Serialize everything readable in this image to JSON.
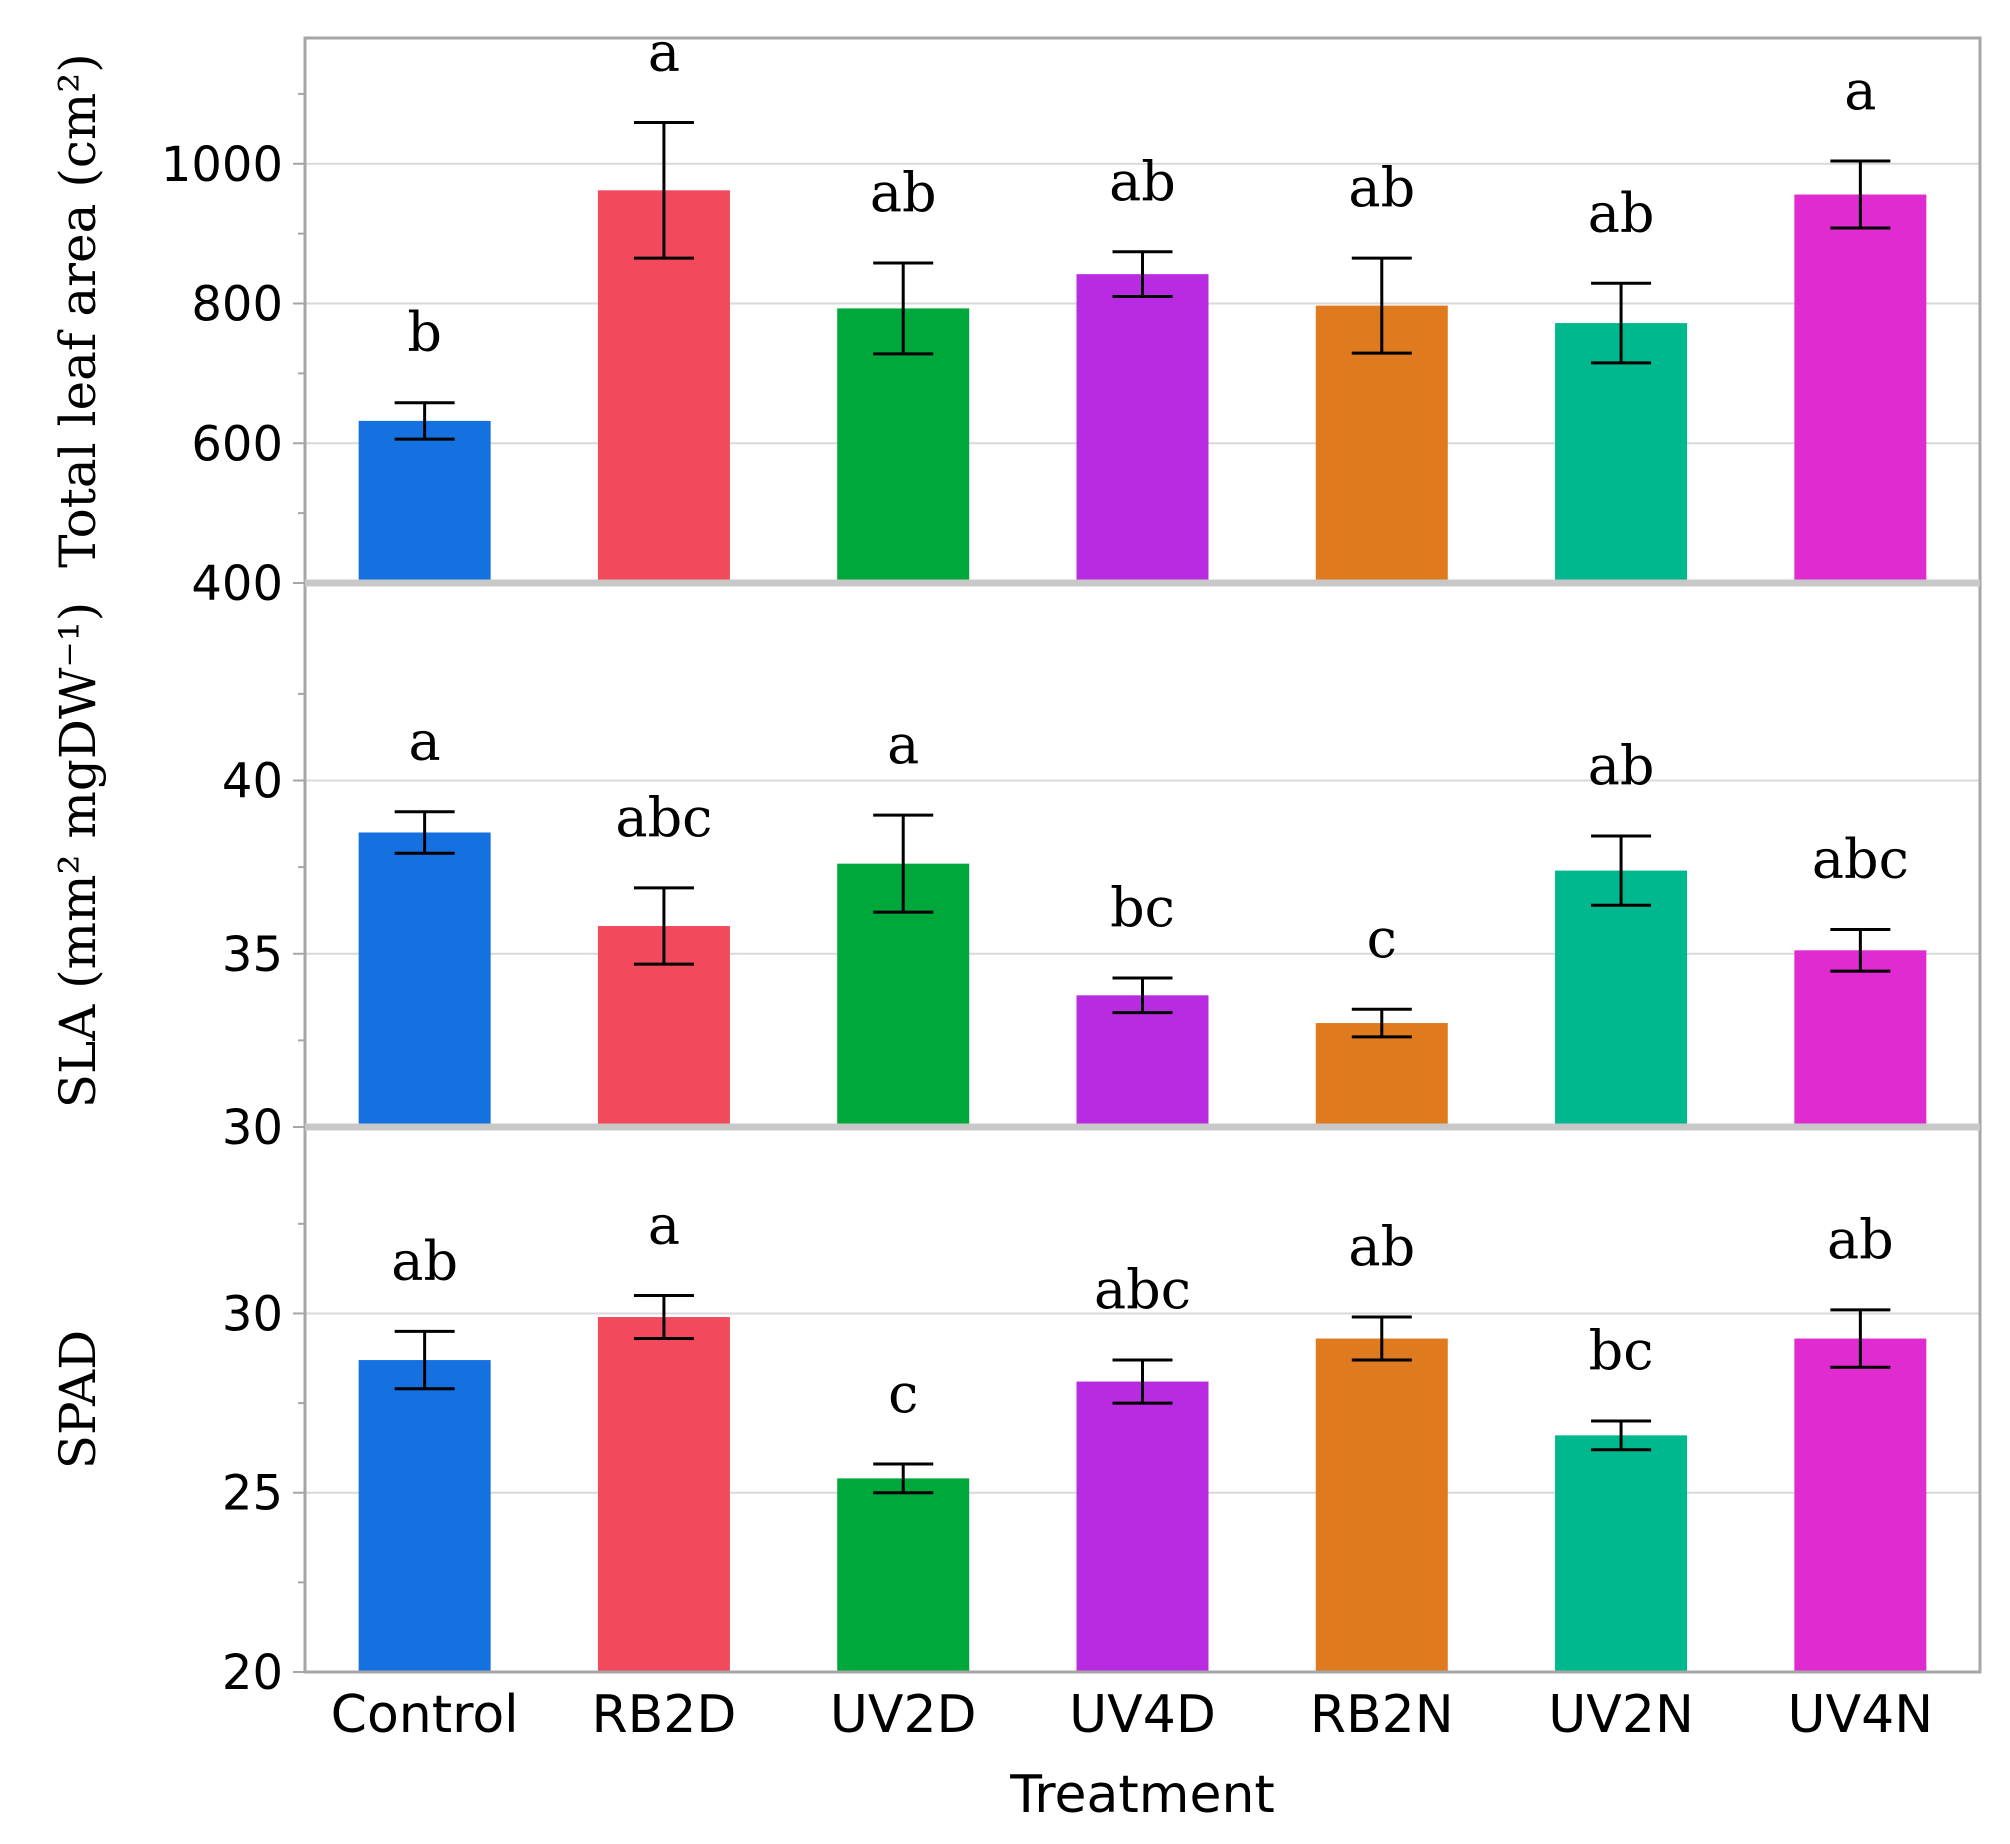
{
  "chart_data": {
    "type": "bar",
    "xlabel": "Treatment",
    "categories": [
      "Control",
      "RB2D",
      "UV2D",
      "UV4D",
      "RB2N",
      "UV2N",
      "UV4N"
    ],
    "colors": [
      "#1570e0",
      "#f24a5c",
      "#00a83c",
      "#b92be0",
      "#e07a1e",
      "#00b88e",
      "#e02bd0"
    ],
    "panels": [
      {
        "ylabel": "Total leaf area (cm²)",
        "ylim": [
          400,
          1180
        ],
        "yticks": [
          400,
          600,
          800,
          1000
        ],
        "values": [
          632,
          962,
          793,
          842,
          797,
          772,
          956
        ],
        "errors": [
          26,
          97,
          65,
          32,
          68,
          57,
          48
        ],
        "significance": [
          "b",
          "a",
          "ab",
          "ab",
          "ab",
          "ab",
          "a"
        ]
      },
      {
        "ylabel": "SLA (mm² mgDW⁻¹)",
        "ylim": [
          30,
          45.7
        ],
        "yticks": [
          30,
          35,
          40
        ],
        "values": [
          38.5,
          35.8,
          37.6,
          33.8,
          33.0,
          37.4,
          35.1
        ],
        "errors": [
          0.6,
          1.1,
          1.4,
          0.5,
          0.4,
          1.0,
          0.6
        ],
        "significance": [
          "a",
          "abc",
          "a",
          "bc",
          "c",
          "ab",
          "abc"
        ]
      },
      {
        "ylabel": "SPAD",
        "ylim": [
          20,
          35.2
        ],
        "yticks": [
          20,
          25,
          30
        ],
        "values": [
          28.7,
          29.9,
          25.4,
          28.1,
          29.3,
          26.6,
          29.3
        ],
        "errors": [
          0.8,
          0.6,
          0.4,
          0.6,
          0.6,
          0.4,
          0.8
        ],
        "significance": [
          "ab",
          "a",
          "c",
          "abc",
          "ab",
          "bc",
          "ab"
        ]
      }
    ]
  }
}
